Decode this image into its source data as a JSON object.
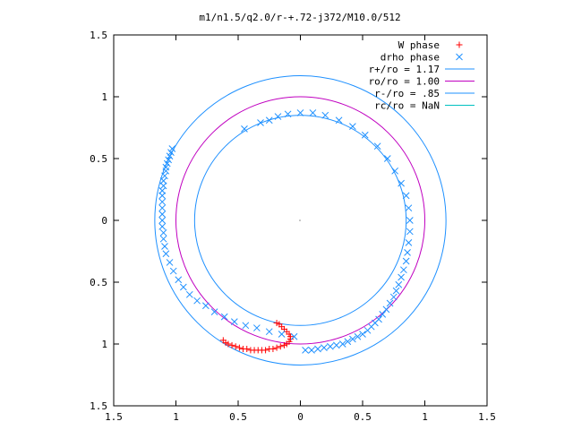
{
  "chart_data": {
    "type": "scatter",
    "title": "m1/n1.5/q2.0/r-+.72-j372/M10.0/512",
    "xlabel": "",
    "ylabel": "",
    "xlim": [
      -1.5,
      1.5
    ],
    "ylim": [
      -1.5,
      1.5
    ],
    "x_ticks": [
      -1.5,
      -1,
      -0.5,
      0,
      0.5,
      1,
      1.5
    ],
    "y_ticks": [
      -1.5,
      -1,
      -0.5,
      0,
      0.5,
      1,
      1.5
    ],
    "x_tick_labels": [
      "1.5",
      "1",
      "0.5",
      "0",
      "0.5",
      "1",
      "1.5"
    ],
    "y_tick_labels": [
      "1.5",
      "1",
      "0.5",
      "0",
      "0.5",
      "1",
      "1.5"
    ],
    "grid": false,
    "legend_position": "top-right",
    "colors": {
      "axes": "#000000",
      "w_phase": "#ff0000",
      "drho_phase": "#1e90ff",
      "r_plus": "#1e90ff",
      "r_o": "#c000c0",
      "r_minus": "#1e90ff",
      "r_c": "#00c0c0"
    },
    "series": [
      {
        "name": "W phase",
        "marker": "+",
        "color": "#ff0000",
        "points": [
          [
            -0.62,
            -0.97
          ],
          [
            -0.6,
            -0.99
          ],
          [
            -0.58,
            -1.0
          ],
          [
            -0.55,
            -1.01
          ],
          [
            -0.52,
            -1.02
          ],
          [
            -0.49,
            -1.03
          ],
          [
            -0.46,
            -1.04
          ],
          [
            -0.43,
            -1.04
          ],
          [
            -0.4,
            -1.05
          ],
          [
            -0.37,
            -1.05
          ],
          [
            -0.34,
            -1.05
          ],
          [
            -0.31,
            -1.05
          ],
          [
            -0.28,
            -1.05
          ],
          [
            -0.25,
            -1.04
          ],
          [
            -0.22,
            -1.04
          ],
          [
            -0.19,
            -1.03
          ],
          [
            -0.16,
            -1.02
          ],
          [
            -0.13,
            -1.01
          ],
          [
            -0.11,
            -1.0
          ],
          [
            -0.09,
            -0.98
          ],
          [
            -0.08,
            -0.96
          ],
          [
            -0.08,
            -0.94
          ],
          [
            -0.09,
            -0.92
          ],
          [
            -0.11,
            -0.9
          ],
          [
            -0.13,
            -0.88
          ],
          [
            -0.15,
            -0.86
          ],
          [
            -0.17,
            -0.84
          ],
          [
            -0.19,
            -0.83
          ]
        ]
      },
      {
        "name": "drho phase",
        "marker": "x",
        "color": "#1e90ff",
        "points": [
          [
            -1.03,
            0.58
          ],
          [
            -1.04,
            0.55
          ],
          [
            -1.05,
            0.52
          ],
          [
            -1.06,
            0.49
          ],
          [
            -1.07,
            0.46
          ],
          [
            -1.08,
            0.43
          ],
          [
            -1.08,
            0.4
          ],
          [
            -1.09,
            0.36
          ],
          [
            -1.1,
            0.32
          ],
          [
            -1.1,
            0.28
          ],
          [
            -1.11,
            0.24
          ],
          [
            -1.11,
            0.2
          ],
          [
            -1.11,
            0.15
          ],
          [
            -1.11,
            0.1
          ],
          [
            -1.11,
            0.05
          ],
          [
            -1.11,
            0.0
          ],
          [
            -1.11,
            -0.05
          ],
          [
            -1.1,
            -0.1
          ],
          [
            -1.1,
            -0.15
          ],
          [
            -1.09,
            -0.21
          ],
          [
            -1.08,
            -0.27
          ],
          [
            -1.05,
            -0.34
          ],
          [
            -1.02,
            -0.41
          ],
          [
            -0.98,
            -0.48
          ],
          [
            -0.94,
            -0.54
          ],
          [
            -0.89,
            -0.6
          ],
          [
            -0.83,
            -0.65
          ],
          [
            -0.76,
            -0.69
          ],
          [
            -0.69,
            -0.74
          ],
          [
            -0.61,
            -0.78
          ],
          [
            -0.53,
            -0.82
          ],
          [
            -0.44,
            -0.85
          ],
          [
            -0.35,
            -0.87
          ],
          [
            -0.25,
            -0.9
          ],
          [
            -0.15,
            -0.92
          ],
          [
            -0.05,
            -0.94
          ],
          [
            0.04,
            -1.05
          ],
          [
            0.09,
            -1.05
          ],
          [
            0.14,
            -1.04
          ],
          [
            0.19,
            -1.03
          ],
          [
            0.24,
            -1.02
          ],
          [
            0.29,
            -1.01
          ],
          [
            0.34,
            -1.0
          ],
          [
            0.38,
            -0.98
          ],
          [
            0.42,
            -0.96
          ],
          [
            0.46,
            -0.94
          ],
          [
            0.5,
            -0.92
          ],
          [
            0.54,
            -0.89
          ],
          [
            0.57,
            -0.86
          ],
          [
            0.6,
            -0.83
          ],
          [
            0.63,
            -0.8
          ],
          [
            0.66,
            -0.76
          ],
          [
            0.69,
            -0.72
          ],
          [
            0.72,
            -0.67
          ],
          [
            0.75,
            -0.62
          ],
          [
            0.77,
            -0.57
          ],
          [
            0.79,
            -0.52
          ],
          [
            0.81,
            -0.46
          ],
          [
            0.83,
            -0.4
          ],
          [
            0.85,
            -0.33
          ],
          [
            0.86,
            -0.26
          ],
          [
            0.87,
            -0.18
          ],
          [
            0.88,
            -0.09
          ],
          [
            0.88,
            0.0
          ],
          [
            0.87,
            0.1
          ],
          [
            0.85,
            0.2
          ],
          [
            0.81,
            0.3
          ],
          [
            0.76,
            0.4
          ],
          [
            0.7,
            0.5
          ],
          [
            0.62,
            0.6
          ],
          [
            0.52,
            0.69
          ],
          [
            0.42,
            0.76
          ],
          [
            0.31,
            0.81
          ],
          [
            0.2,
            0.85
          ],
          [
            0.1,
            0.87
          ],
          [
            0.0,
            0.87
          ],
          [
            -0.1,
            0.86
          ],
          [
            -0.18,
            0.84
          ],
          [
            -0.25,
            0.81
          ],
          [
            -0.32,
            0.79
          ],
          [
            -0.45,
            0.74
          ]
        ]
      },
      {
        "name": "r+/ro = 1.17",
        "type": "circle",
        "radius": 1.17,
        "color": "#1e90ff"
      },
      {
        "name": "ro/ro = 1.00",
        "type": "circle",
        "radius": 1.0,
        "color": "#c000c0"
      },
      {
        "name": "r-/ro = .85",
        "type": "circle",
        "radius": 0.85,
        "color": "#1e90ff"
      },
      {
        "name": "rc/ro = NaN",
        "type": "circle",
        "radius": null,
        "color": "#00c0c0"
      }
    ]
  }
}
